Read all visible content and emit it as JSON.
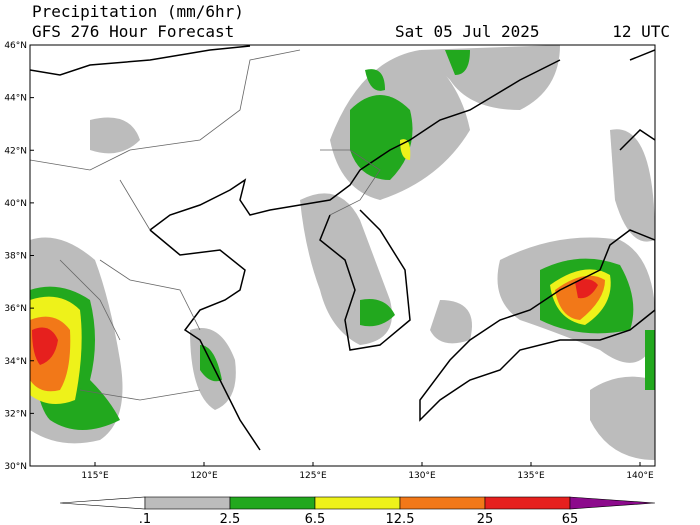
{
  "header": {
    "title": "Precipitation (mm/6hr)",
    "subtitle": "GFS 276 Hour Forecast",
    "date": "Sat 05 Jul 2025",
    "time": "12 UTC"
  },
  "map": {
    "lat_labels": [
      "30°N",
      "32°N",
      "34°N",
      "36°N",
      "38°N",
      "40°N",
      "42°N",
      "44°N",
      "46°N"
    ],
    "lon_labels": [
      "115°E",
      "120°E",
      "125°E",
      "130°E",
      "135°E",
      "140°E"
    ]
  },
  "colorbar": {
    "labels": [
      ".1",
      "2.5",
      "6.5",
      "12.5",
      "25",
      "65"
    ],
    "colors": [
      "#ffffff",
      "#bcbcbc",
      "#22a81e",
      "#eef21a",
      "#f27818",
      "#e6201e",
      "#8c0a8c"
    ]
  }
}
